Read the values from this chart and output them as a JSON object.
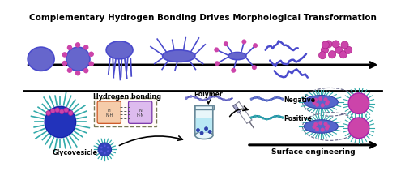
{
  "title_top": "Complementary Hydrogen Bonding Drives Morphological Transformation",
  "label_surface": "Surface engineering",
  "label_negative": "Negative",
  "label_positive": "Positive",
  "label_polymer": "Polymer",
  "label_hydrogen": "Hydrogen bonding",
  "label_glycovesicle": "Glycovesicle",
  "blue_dark": "#4a4acc",
  "blue_body": "#6666cc",
  "blue_deep": "#3333aa",
  "magenta": "#cc44aa",
  "teal": "#33aaaa",
  "figsize": [
    5.0,
    2.28
  ],
  "dpi": 100,
  "jellyfish_tentacles_x": [
    -13,
    -9,
    -5,
    -1,
    3,
    7,
    11,
    15
  ],
  "jellyfish_tentacles_len": [
    20,
    25,
    22,
    28,
    24,
    26,
    21,
    23
  ],
  "jellyfish_tentacles_dx": [
    -2,
    1,
    -3,
    2,
    -1,
    3,
    -2,
    1
  ]
}
